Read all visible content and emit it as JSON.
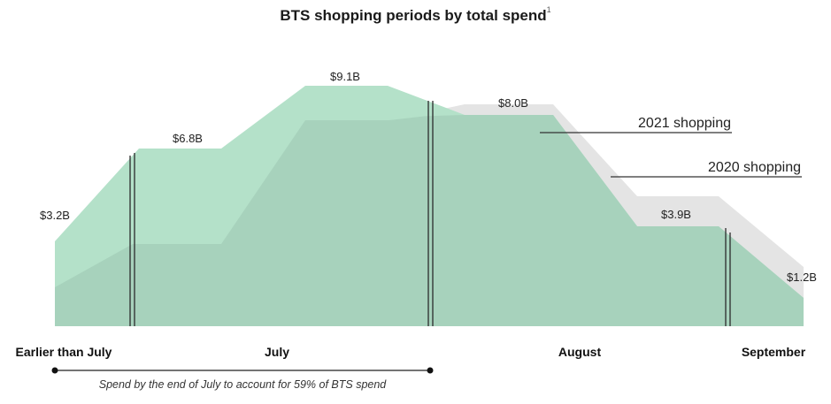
{
  "chart_data": {
    "type": "area",
    "title": "BTS shopping periods by total spend",
    "title_note": "1",
    "periods": [
      "Earlier than July",
      "July",
      "August",
      "September"
    ],
    "series": [
      {
        "name": "2021 shopping",
        "color": "#b4e1c9",
        "labels": [
          "$3.2B",
          "$6.8B",
          "$9.1B",
          "$8.0B",
          "$3.9B",
          "$1.2B"
        ]
      },
      {
        "name": "2020 shopping",
        "color": "#e4e4e4"
      }
    ],
    "overlap_color": "#a7d2bc",
    "annotation": "Spend by the end of July to account for 59% of BTS spend",
    "annotation_span": [
      "Earlier than July",
      "July"
    ]
  }
}
